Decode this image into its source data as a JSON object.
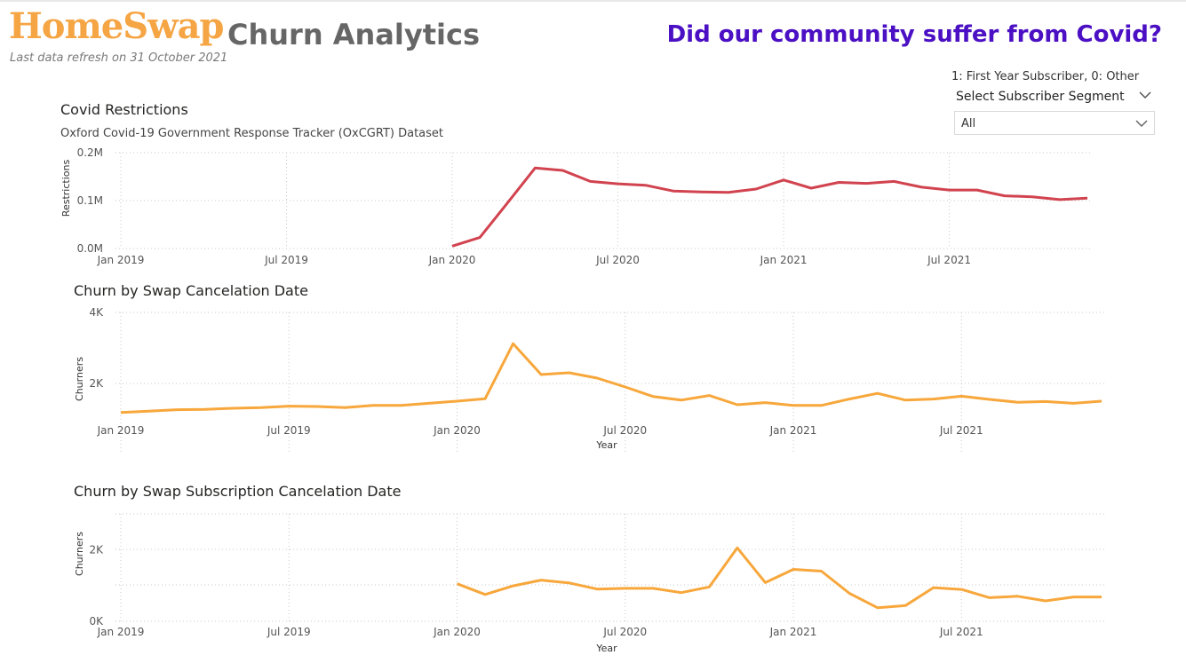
{
  "header": {
    "logo": "HomeSwap",
    "refresh_note": "Last data refresh on 31 October 2021",
    "title": "Churn Analytics",
    "question": "Did our community suffer from Covid?"
  },
  "filter": {
    "note": "1: First Year Subscriber, 0: Other",
    "label": "Select Subscriber Segment",
    "value": "All"
  },
  "chart_data": [
    {
      "type": "line",
      "title": "Covid Restrictions",
      "subtitle": "Oxford Covid-19 Government Response Tracker (OxCGRT) Dataset",
      "xlabel": "",
      "ylabel": "Restrictions",
      "yticks": [
        "0.0M",
        "0.1M",
        "0.2M"
      ],
      "ylim": [
        0,
        200000
      ],
      "xticks": [
        "Jan 2019",
        "Jul 2019",
        "Jan 2020",
        "Jul 2020",
        "Jan 2021",
        "Jul 2021"
      ],
      "grid": true,
      "color": "#d1434f",
      "x": [
        "2020-01",
        "2020-02",
        "2020-03",
        "2020-04",
        "2020-05",
        "2020-06",
        "2020-07",
        "2020-08",
        "2020-09",
        "2020-10",
        "2020-11",
        "2020-12",
        "2021-01",
        "2021-02",
        "2021-03",
        "2021-04",
        "2021-05",
        "2021-06",
        "2021-07",
        "2021-08",
        "2021-09",
        "2021-10",
        "2021-11",
        "2021-12"
      ],
      "series": [
        {
          "values": [
            5000,
            23000,
            95000,
            168000,
            163000,
            140000,
            135000,
            132000,
            120000,
            118000,
            117000,
            124000,
            143000,
            126000,
            138000,
            136000,
            140000,
            128000,
            122000,
            122000,
            110000,
            108000,
            102000,
            105000
          ]
        }
      ]
    },
    {
      "type": "line",
      "title": "Churn by Swap Cancelation Date",
      "xlabel": "Year",
      "ylabel": "Churners",
      "yticks": [
        "2K",
        "4K"
      ],
      "ylim": [
        0,
        4000
      ],
      "xticks": [
        "Jan 2019",
        "Jul 2019",
        "Jan 2020",
        "Jul 2020",
        "Jan 2021",
        "Jul 2021"
      ],
      "grid": true,
      "color": "#f7a73b",
      "x": [
        "2019-01",
        "2019-02",
        "2019-03",
        "2019-04",
        "2019-05",
        "2019-06",
        "2019-07",
        "2019-08",
        "2019-09",
        "2019-10",
        "2019-11",
        "2019-12",
        "2020-01",
        "2020-02",
        "2020-03",
        "2020-04",
        "2020-05",
        "2020-06",
        "2020-07",
        "2020-08",
        "2020-09",
        "2020-10",
        "2020-11",
        "2020-12",
        "2021-01",
        "2021-02",
        "2021-03",
        "2021-04",
        "2021-05",
        "2021-06",
        "2021-07",
        "2021-08",
        "2021-09",
        "2021-10",
        "2021-11",
        "2021-12"
      ],
      "series": [
        {
          "values": [
            1180,
            1220,
            1260,
            1270,
            1300,
            1320,
            1360,
            1350,
            1320,
            1380,
            1380,
            1440,
            1500,
            1570,
            3120,
            2250,
            2300,
            2150,
            1900,
            1630,
            1530,
            1660,
            1400,
            1460,
            1380,
            1380,
            1560,
            1720,
            1530,
            1560,
            1640,
            1550,
            1470,
            1490,
            1440,
            1500
          ]
        }
      ]
    },
    {
      "type": "line",
      "title": "Churn by Swap Subscription Cancelation Date",
      "xlabel": "Year",
      "ylabel": "Churners",
      "yticks": [
        "0K",
        "2K"
      ],
      "ylim": [
        0,
        3000
      ],
      "xticks": [
        "Jan 2019",
        "Jul 2019",
        "Jan 2020",
        "Jul 2020",
        "Jan 2021",
        "Jul 2021"
      ],
      "grid": true,
      "color": "#f7a73b",
      "x": [
        "2020-01",
        "2020-02",
        "2020-03",
        "2020-04",
        "2020-05",
        "2020-06",
        "2020-07",
        "2020-08",
        "2020-09",
        "2020-10",
        "2020-11",
        "2020-12",
        "2021-01",
        "2021-02",
        "2021-03",
        "2021-04",
        "2021-05",
        "2021-06",
        "2021-07",
        "2021-08",
        "2021-09",
        "2021-10",
        "2021-11",
        "2021-12"
      ],
      "series": [
        {
          "values": [
            1050,
            750,
            990,
            1150,
            1070,
            900,
            920,
            920,
            800,
            960,
            2050,
            1080,
            1450,
            1400,
            780,
            380,
            440,
            940,
            890,
            660,
            700,
            570,
            680,
            680
          ]
        }
      ]
    }
  ]
}
